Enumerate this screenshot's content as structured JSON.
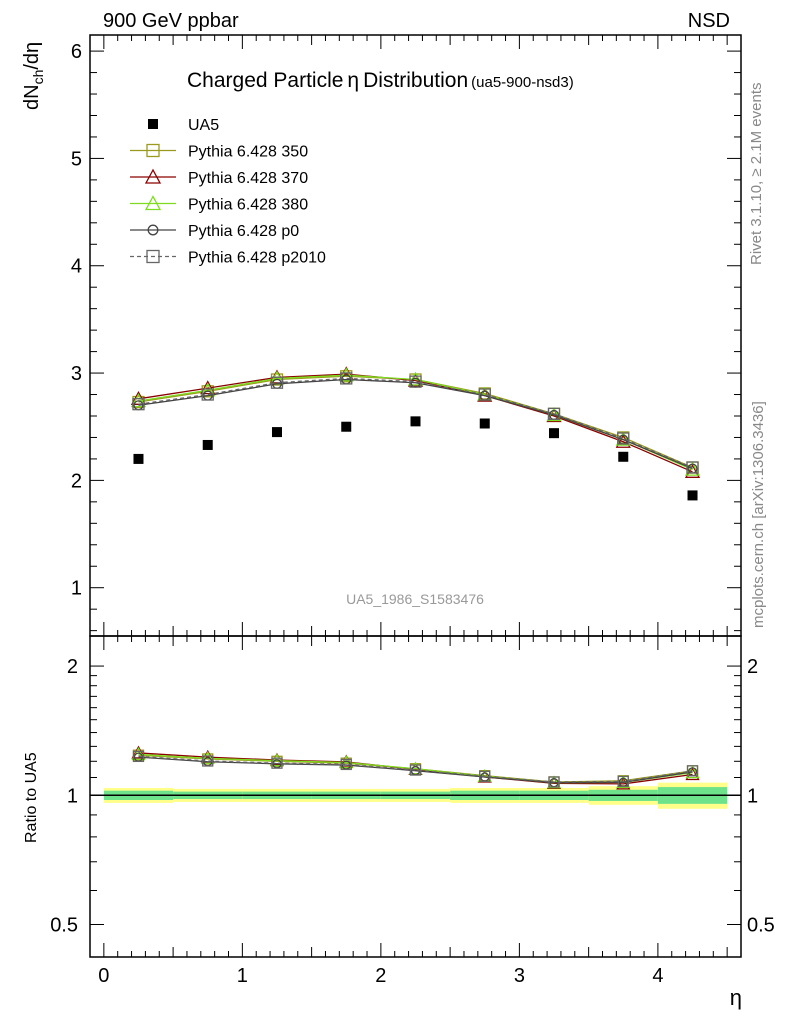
{
  "header": {
    "left": "900 GeV ppbar",
    "right": "NSD"
  },
  "side_labels": {
    "rivet": "Rivet 3.1.10, ≥ 2.1M events",
    "mcplots": "mcplots.cern.ch [arXiv:1306.3436]"
  },
  "chart_data": [
    {
      "type": "scatter",
      "panel": "main",
      "title": "Charged Particle",
      "title_symbol": "η",
      "title_rest": "Distribution",
      "subtitle": "(ua5-900-nsd3)",
      "watermark": "UA5_1986_S1583476",
      "ylabel_main": "dN",
      "ylabel_sub": "ch",
      "ylabel_tail": "/dη",
      "xlim": [
        -0.1,
        4.6
      ],
      "ylim": [
        0.55,
        6.15
      ],
      "yticks": [
        1,
        2,
        3,
        4,
        5,
        6
      ],
      "ytick_labels": [
        "1",
        "2",
        "3",
        "4",
        "5",
        "6"
      ],
      "x": [
        0.25,
        0.75,
        1.25,
        1.75,
        2.25,
        2.75,
        3.25,
        3.75,
        4.25
      ],
      "series": [
        {
          "name": "UA5",
          "marker": "filled-square",
          "color": "#000000",
          "values": [
            2.2,
            2.33,
            2.45,
            2.5,
            2.55,
            2.53,
            2.44,
            2.22,
            1.86
          ]
        },
        {
          "name": "Pythia 6.428 350",
          "marker": "open-square",
          "color": "#9a9a1e",
          "values": [
            2.73,
            2.83,
            2.94,
            2.97,
            2.94,
            2.81,
            2.62,
            2.4,
            2.12
          ]
        },
        {
          "name": "Pythia 6.428 370",
          "marker": "open-triangle",
          "color": "#8b0000",
          "values": [
            2.76,
            2.86,
            2.96,
            2.99,
            2.93,
            2.79,
            2.6,
            2.36,
            2.08
          ]
        },
        {
          "name": "Pythia 6.428 380",
          "marker": "open-triangle",
          "color": "#7ddc1f",
          "values": [
            2.74,
            2.84,
            2.95,
            2.98,
            2.94,
            2.8,
            2.61,
            2.38,
            2.1
          ]
        },
        {
          "name": "Pythia 6.428 p0",
          "marker": "open-circle",
          "color": "#444444",
          "values": [
            2.7,
            2.79,
            2.9,
            2.94,
            2.91,
            2.79,
            2.61,
            2.38,
            2.11
          ]
        },
        {
          "name": "Pythia 6.428 p2010",
          "marker": "open-square-dashed",
          "color": "#666666",
          "values": [
            2.71,
            2.8,
            2.91,
            2.95,
            2.92,
            2.8,
            2.62,
            2.39,
            2.12
          ]
        }
      ]
    },
    {
      "type": "line",
      "panel": "ratio",
      "ylabel": "Ratio to UA5",
      "xlabel": "η",
      "xlim": [
        -0.1,
        4.6
      ],
      "ylim": [
        0.42,
        2.35
      ],
      "log_y": true,
      "yticks": [
        0.5,
        1,
        2
      ],
      "ytick_labels": [
        "0.5",
        "1",
        "2"
      ],
      "xticks": [
        0,
        1,
        2,
        3,
        4
      ],
      "xtick_labels": [
        "0",
        "1",
        "2",
        "3",
        "4"
      ],
      "x": [
        0.25,
        0.75,
        1.25,
        1.75,
        2.25,
        2.75,
        3.25,
        3.75,
        4.25
      ],
      "bin_edges": [
        0,
        0.5,
        1,
        1.5,
        2,
        2.5,
        3,
        3.5,
        4,
        4.5
      ],
      "band_yellow": [
        0.04,
        0.035,
        0.035,
        0.035,
        0.035,
        0.04,
        0.04,
        0.05,
        0.07
      ],
      "band_green": [
        0.025,
        0.02,
        0.02,
        0.02,
        0.02,
        0.025,
        0.025,
        0.03,
        0.045
      ],
      "series": [
        {
          "name": "Pythia 6.428 350",
          "color": "#9a9a1e",
          "values": [
            1.24,
            1.215,
            1.2,
            1.188,
            1.153,
            1.111,
            1.074,
            1.081,
            1.14
          ]
        },
        {
          "name": "Pythia 6.428 370",
          "color": "#8b0000",
          "values": [
            1.255,
            1.227,
            1.208,
            1.196,
            1.149,
            1.103,
            1.066,
            1.063,
            1.118
          ]
        },
        {
          "name": "Pythia 6.428 380",
          "color": "#7ddc1f",
          "values": [
            1.245,
            1.219,
            1.204,
            1.192,
            1.153,
            1.107,
            1.07,
            1.072,
            1.129
          ]
        },
        {
          "name": "Pythia 6.428 p0",
          "color": "#444444",
          "values": [
            1.227,
            1.197,
            1.184,
            1.176,
            1.141,
            1.103,
            1.07,
            1.072,
            1.134
          ]
        },
        {
          "name": "Pythia 6.428 p2010",
          "color": "#666666",
          "values": [
            1.232,
            1.202,
            1.188,
            1.18,
            1.145,
            1.107,
            1.074,
            1.077,
            1.14
          ]
        }
      ]
    }
  ]
}
